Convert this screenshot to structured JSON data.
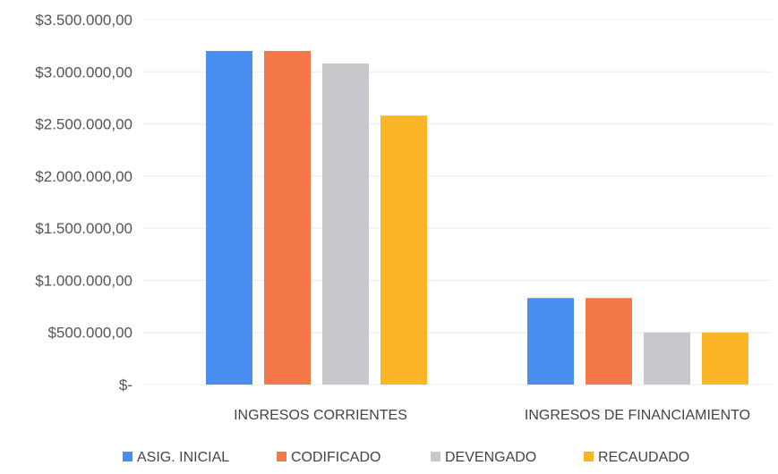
{
  "chart_data": {
    "type": "bar",
    "title": "",
    "xlabel": "",
    "ylabel": "",
    "ylim": [
      0,
      3500000
    ],
    "ytick_values": [
      0,
      500000,
      1000000,
      1500000,
      2000000,
      2500000,
      3000000,
      3500000
    ],
    "ytick_labels": [
      "$-",
      "$500.000,00",
      "$1.000.000,00",
      "$1.500.000,00",
      "$2.000.000,00",
      "$2.500.000,00",
      "$3.000.000,00",
      "$3.500.000,00"
    ],
    "grid": true,
    "legend_position": "bottom",
    "categories": [
      "INGRESOS CORRIENTES",
      "INGRESOS DE FINANCIAMIENTO"
    ],
    "series": [
      {
        "name": "ASIG. INICIAL",
        "color": "#4a8ff0",
        "values": [
          3200000,
          830000
        ]
      },
      {
        "name": "CODIFICADO",
        "color": "#f5784a",
        "values": [
          3200000,
          830000
        ]
      },
      {
        "name": "DEVENGADO",
        "color": "#c7c7cc",
        "values": [
          3080000,
          500000
        ]
      },
      {
        "name": "RECAUDADO",
        "color": "#fbb526",
        "values": [
          2580000,
          500000
        ]
      }
    ]
  }
}
